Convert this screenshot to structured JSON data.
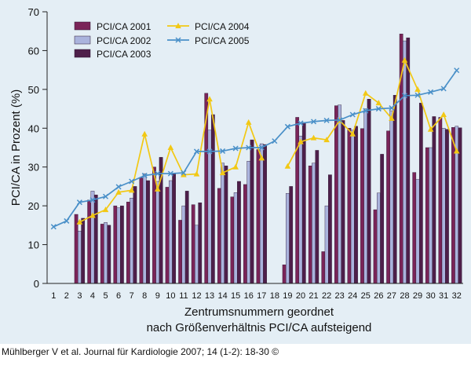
{
  "chart_data": {
    "type": "bar",
    "xlabel": "Zentrumsnummern geordnet",
    "xlabel_line2": "nach Größenverhältnis PCI/CA aufsteigend",
    "ylabel": "PCI/CA in Prozent (%)",
    "ylim": [
      0,
      70
    ],
    "yticks": [
      0,
      10,
      20,
      30,
      40,
      50,
      60,
      70
    ],
    "categories": [
      "1",
      "2",
      "3",
      "4",
      "5",
      "6",
      "7",
      "8",
      "9",
      "10",
      "11",
      "12",
      "13",
      "14",
      "15",
      "16",
      "17",
      "18",
      "19",
      "20",
      "21",
      "22",
      "23",
      "24",
      "25",
      "26",
      "27",
      "28",
      "29",
      "30",
      "31",
      "32"
    ],
    "bar_series": [
      {
        "name": "PCI/CA 2001",
        "color": "#7a2458",
        "values": [
          null,
          null,
          17.8,
          21.5,
          15.3,
          20,
          21,
          27.3,
          30,
          24.8,
          16.3,
          20.3,
          49,
          24.5,
          22.3,
          25.5,
          34.5,
          null,
          4.8,
          42.8,
          30.3,
          8.2,
          45.8,
          40,
          39.9,
          19,
          39.3,
          64.3,
          28.6,
          35,
          42.8,
          40.2
        ]
      },
      {
        "name": "PCI/CA 2002",
        "color": "#aab3dd",
        "values": [
          null,
          null,
          13.5,
          23.8,
          15.7,
          19.5,
          22,
          28.3,
          26.3,
          26.5,
          20,
          15,
          39.5,
          31,
          23.4,
          31.5,
          36,
          null,
          23.2,
          38,
          31,
          20,
          46,
          39.5,
          45,
          23.3,
          44.5,
          62.5,
          26.8,
          35,
          40,
          40.5
        ]
      },
      {
        "name": "PCI/CA 2003",
        "color": "#4e1f4a",
        "values": [
          null,
          null,
          16.8,
          22.8,
          15,
          20,
          25,
          26.5,
          32.5,
          28.3,
          23.8,
          20.8,
          43.5,
          30.3,
          26.3,
          37,
          35.8,
          null,
          25,
          41.5,
          34.3,
          28,
          42,
          40.5,
          47.5,
          33.3,
          48.5,
          63.3,
          46.5,
          43,
          39.7,
          40.1
        ]
      }
    ],
    "line_series": [
      {
        "name": "PCI/CA 2004",
        "color": "#f2c814",
        "marker": "triangle",
        "values": [
          null,
          null,
          15.8,
          17.5,
          19,
          23.5,
          24,
          38.5,
          24.3,
          35,
          28,
          28.2,
          47.5,
          28.5,
          30,
          41.5,
          32.3,
          null,
          30.2,
          36.5,
          37.5,
          37,
          42,
          38.5,
          49,
          46.5,
          42.5,
          57.5,
          50,
          39.7,
          43.5,
          34.1
        ]
      },
      {
        "name": "PCI/CA 2005",
        "color": "#4a90c8",
        "marker": "x",
        "values": [
          14.6,
          16.1,
          20.9,
          21.5,
          22.4,
          24.9,
          26.3,
          27.8,
          28.3,
          28.3,
          28.5,
          34,
          34,
          34.1,
          34.8,
          35,
          35,
          36.7,
          40.4,
          41.3,
          41.7,
          42,
          42.1,
          43.5,
          44.5,
          45,
          45.2,
          48.4,
          48.5,
          49.3,
          50.2,
          54.9
        ]
      }
    ],
    "legend_position": "top-center",
    "grid": false
  },
  "citation": "Mühlberger V et al. Journal für Kardiologie 2007; 14 (1-2): 18-30 ©"
}
